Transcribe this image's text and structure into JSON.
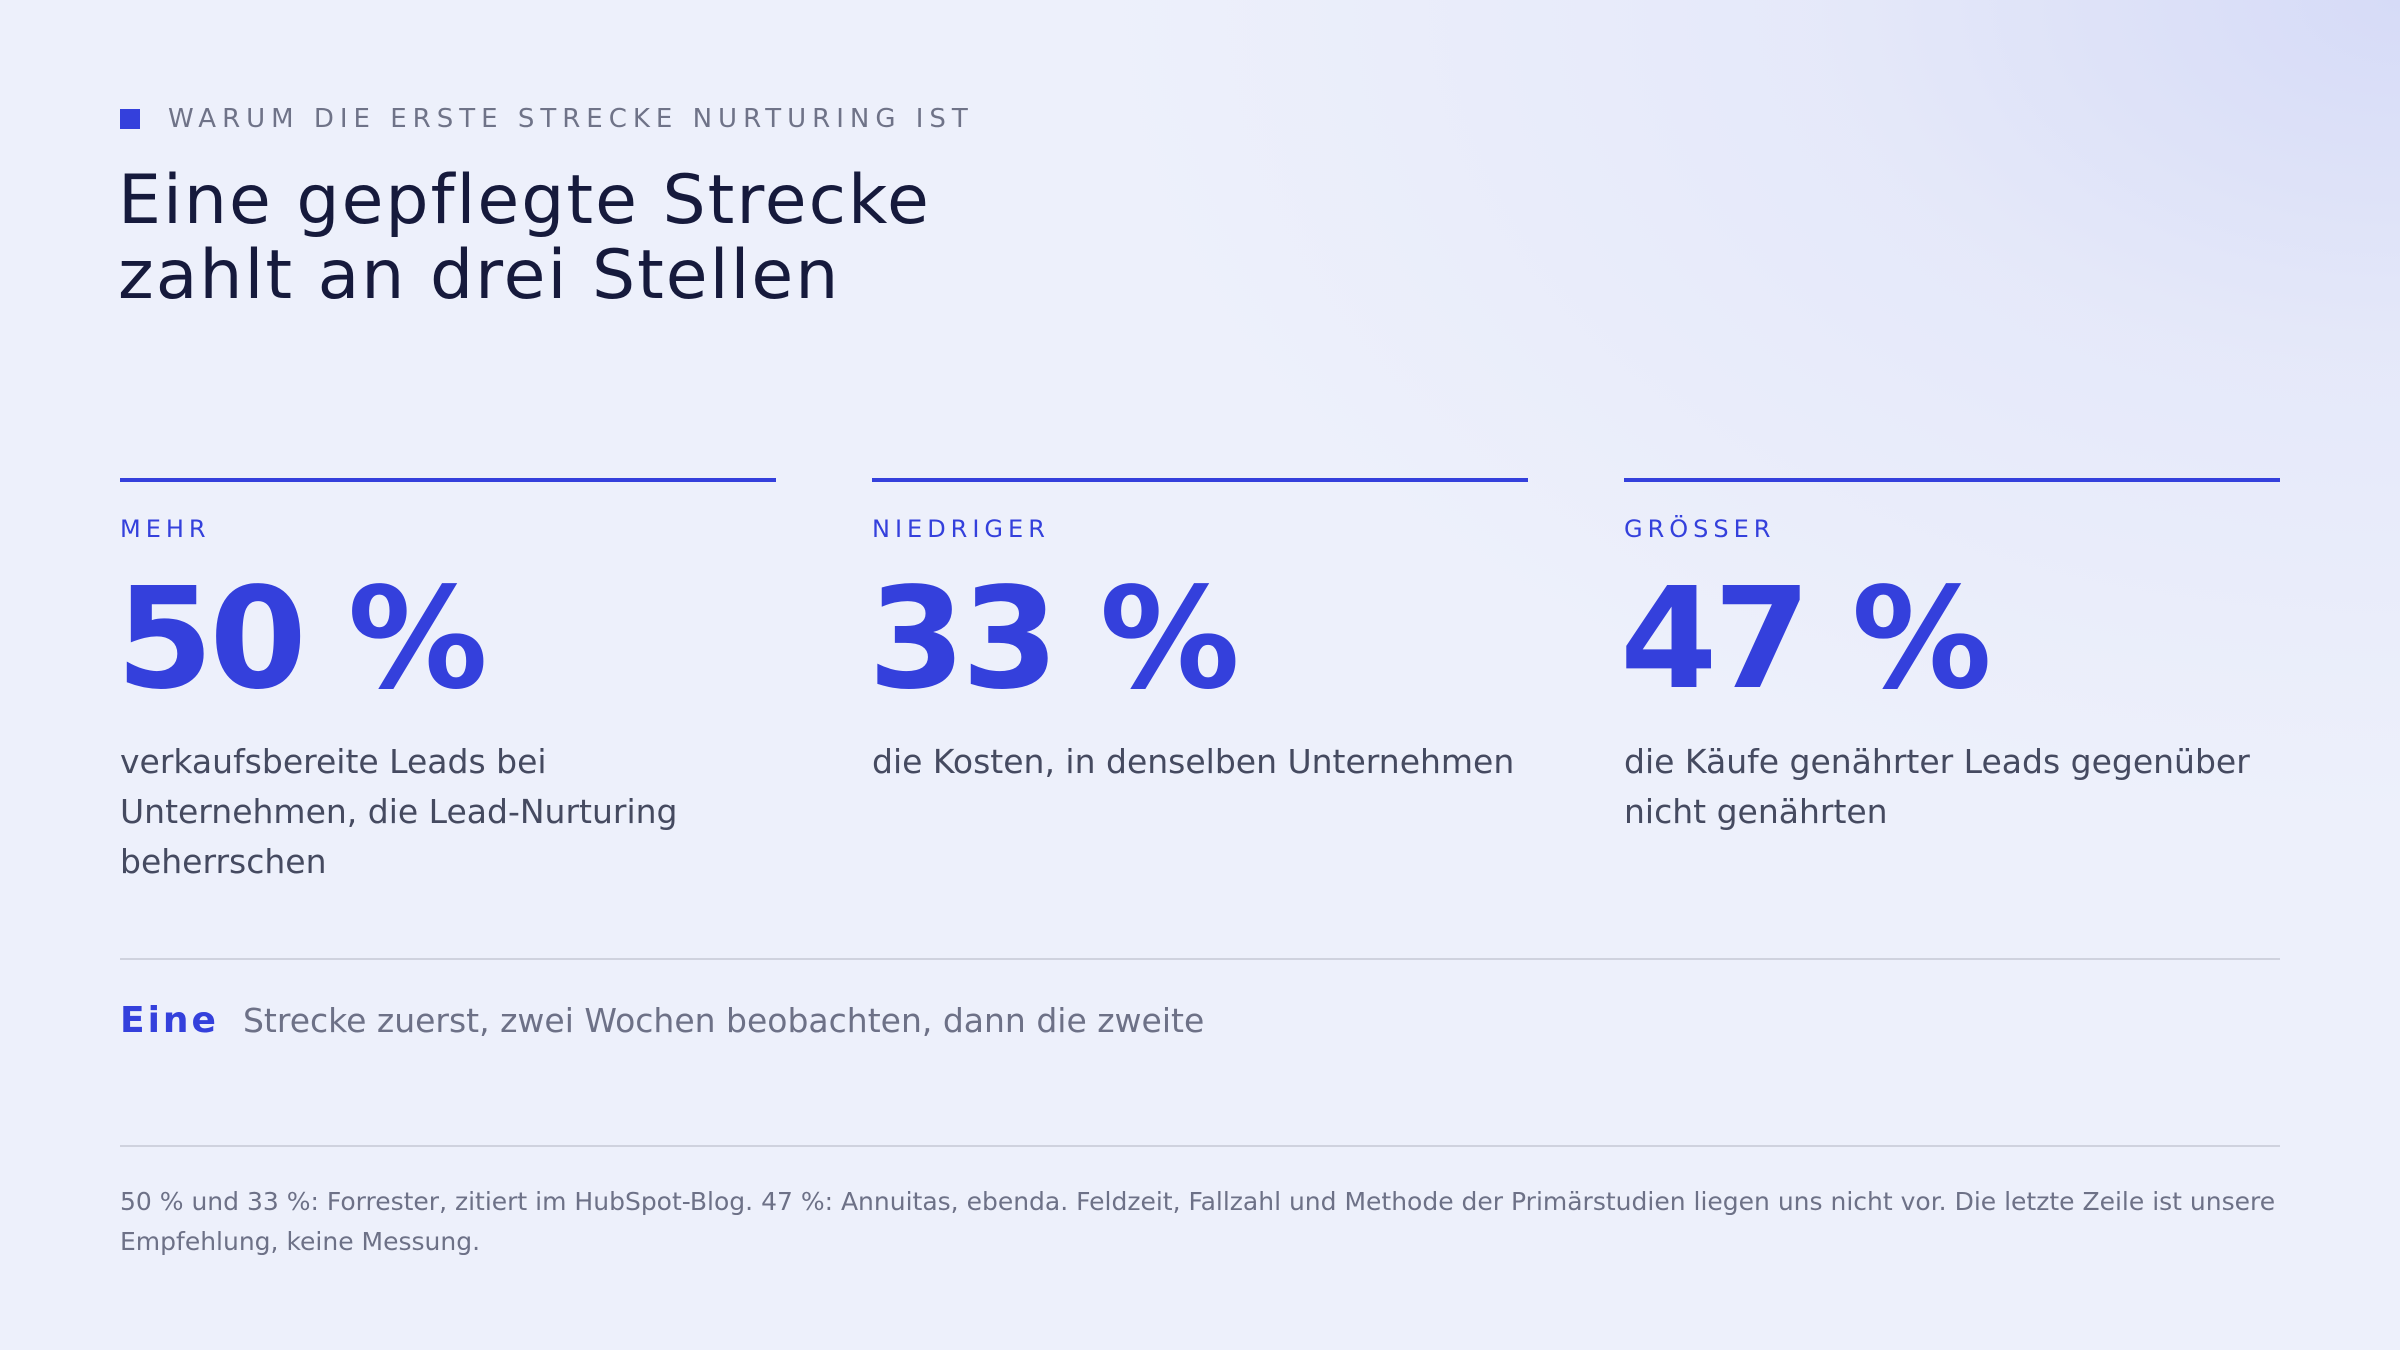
{
  "eyebrow": "WARUM DIE ERSTE STRECKE NURTURING IST",
  "title": {
    "line1": "Eine gepflegte Strecke",
    "line2": "zahlt an drei Stellen"
  },
  "stats": [
    {
      "label": "MEHR",
      "value": "50 %",
      "description": "verkaufsbereite Leads bei Unternehmen, die Lead-Nurturing beherrschen"
    },
    {
      "label": "NIEDRIGER",
      "value": "33 %",
      "description": "die Kosten, in denselben Unternehmen"
    },
    {
      "label": "GRÖSSER",
      "value": "47 %",
      "description": "die Käufe genährter Leads gegenüber nicht genährten"
    }
  ],
  "recommendation": {
    "key": "Eine",
    "text": "Strecke zuerst, zwei Wochen beobachten, dann die zweite"
  },
  "footnote": "50 % und 33 %: Forrester, zitiert im HubSpot-Blog. 47 %: Annuitas, ebenda. Feldzeit, Fallzahl und Methode der Primärstudien liegen uns nicht vor. Die letzte Zeile ist unsere Empfehlung, keine Messung.",
  "colors": {
    "accent": "#3440dc",
    "heading": "#161a3c",
    "body": "#454a60",
    "muted": "#6d7187",
    "background": "#edf0fb"
  }
}
